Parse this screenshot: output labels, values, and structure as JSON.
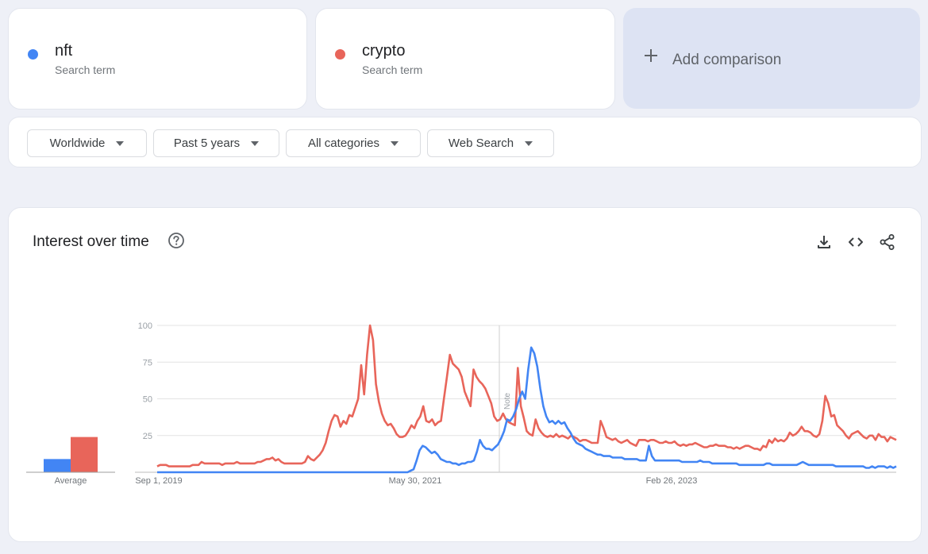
{
  "terms": [
    {
      "name": "nft",
      "sub": "Search term",
      "color": "#4285f4"
    },
    {
      "name": "crypto",
      "sub": "Search term",
      "color": "#e8655a"
    }
  ],
  "add_comparison": {
    "label": "Add comparison",
    "icon": "plus-icon"
  },
  "filters": {
    "region": "Worldwide",
    "time": "Past 5 years",
    "category": "All categories",
    "type": "Web Search"
  },
  "chart": {
    "title": "Interest over time",
    "help_icon": "help-circle-icon",
    "tools": [
      "download-icon",
      "embed-code-icon",
      "share-icon"
    ],
    "note_label": "Note"
  },
  "chart_data": {
    "type": "line",
    "xlabel": "",
    "ylabel": "",
    "ylim": [
      0,
      100
    ],
    "yticks": [
      25,
      50,
      75,
      100
    ],
    "xtick_labels": [
      "Sep 1, 2019",
      "May 30, 2021",
      "Feb 26, 2023"
    ],
    "average": {
      "label": "Average",
      "nft": 9,
      "crypto": 24
    },
    "grid": true,
    "series": [
      {
        "name": "nft",
        "color": "#4285f4",
        "values": [
          0,
          0,
          0,
          0,
          0,
          0,
          0,
          0,
          0,
          0,
          0,
          0,
          0,
          0,
          0,
          0,
          0,
          0,
          0,
          0,
          0,
          0,
          0,
          0,
          0,
          0,
          0,
          0,
          0,
          0,
          0,
          0,
          0,
          0,
          0,
          0,
          0,
          0,
          0,
          0,
          0,
          0,
          0,
          0,
          0,
          0,
          0,
          0,
          0,
          0,
          0,
          0,
          0,
          0,
          0,
          0,
          0,
          0,
          0,
          0,
          0,
          0,
          0,
          0,
          0,
          0,
          0,
          0,
          0,
          0,
          0,
          0,
          0,
          0,
          0,
          0,
          0,
          0,
          0,
          0,
          0,
          0,
          0,
          0,
          1,
          2,
          8,
          15,
          18,
          17,
          15,
          13,
          14,
          12,
          9,
          8,
          7,
          7,
          6,
          6,
          5,
          6,
          6,
          7,
          7,
          8,
          14,
          22,
          18,
          16,
          16,
          15,
          17,
          19,
          23,
          28,
          36,
          35,
          38,
          43,
          50,
          55,
          50,
          70,
          85,
          81,
          72,
          57,
          45,
          38,
          34,
          35,
          33,
          35,
          33,
          34,
          30,
          27,
          23,
          20,
          19,
          18,
          16,
          15,
          14,
          13,
          12,
          12,
          11,
          11,
          11,
          10,
          10,
          10,
          10,
          9,
          9,
          9,
          9,
          9,
          8,
          8,
          8,
          18,
          11,
          8,
          8,
          8,
          8,
          8,
          8,
          8,
          8,
          8,
          7,
          7,
          7,
          7,
          7,
          7,
          8,
          7,
          7,
          7,
          6,
          6,
          6,
          6,
          6,
          6,
          6,
          6,
          6,
          5,
          5,
          5,
          5,
          5,
          5,
          5,
          5,
          5,
          6,
          6,
          5,
          5,
          5,
          5,
          5,
          5,
          5,
          5,
          5,
          6,
          7,
          6,
          5,
          5,
          5,
          5,
          5,
          5,
          5,
          5,
          5,
          4,
          4,
          4,
          4,
          4,
          4,
          4,
          4,
          4,
          4,
          3,
          3,
          4,
          3,
          4,
          4,
          4,
          3,
          4,
          3,
          4
        ]
      },
      {
        "name": "crypto",
        "color": "#e8655a",
        "values": [
          4,
          5,
          5,
          5,
          4,
          4,
          4,
          4,
          4,
          4,
          4,
          4,
          5,
          5,
          5,
          7,
          6,
          6,
          6,
          6,
          6,
          6,
          5,
          6,
          6,
          6,
          6,
          7,
          6,
          6,
          6,
          6,
          6,
          6,
          7,
          7,
          8,
          9,
          9,
          10,
          8,
          9,
          7,
          6,
          6,
          6,
          6,
          6,
          6,
          6,
          7,
          11,
          9,
          8,
          10,
          12,
          15,
          20,
          28,
          35,
          39,
          38,
          31,
          35,
          33,
          39,
          38,
          44,
          50,
          73,
          53,
          80,
          100,
          90,
          60,
          48,
          40,
          35,
          32,
          33,
          30,
          26,
          24,
          24,
          25,
          28,
          32,
          30,
          35,
          38,
          45,
          35,
          34,
          36,
          32,
          34,
          35,
          50,
          65,
          80,
          74,
          72,
          70,
          65,
          55,
          50,
          45,
          70,
          65,
          62,
          60,
          57,
          52,
          47,
          38,
          35,
          36,
          40,
          36,
          34,
          33,
          32,
          71,
          45,
          37,
          28,
          26,
          25,
          36,
          30,
          27,
          25,
          24,
          25,
          24,
          26,
          24,
          25,
          24,
          23,
          25,
          24,
          23,
          21,
          22,
          22,
          21,
          20,
          20,
          20,
          35,
          30,
          24,
          23,
          22,
          23,
          21,
          20,
          21,
          22,
          20,
          19,
          18,
          22,
          22,
          22,
          21,
          22,
          22,
          21,
          20,
          20,
          21,
          20,
          20,
          21,
          19,
          18,
          19,
          18,
          19,
          19,
          20,
          19,
          18,
          17,
          17,
          18,
          18,
          19,
          18,
          18,
          18,
          17,
          17,
          16,
          17,
          16,
          17,
          18,
          18,
          17,
          16,
          16,
          15,
          18,
          17,
          22,
          20,
          23,
          21,
          22,
          21,
          23,
          27,
          25,
          26,
          28,
          31,
          28,
          28,
          27,
          25,
          24,
          26,
          35,
          52,
          47,
          38,
          39,
          32,
          30,
          28,
          25,
          23,
          26,
          27,
          28,
          26,
          24,
          23,
          25,
          25,
          22,
          26,
          24,
          24,
          21,
          24,
          23,
          22
        ]
      }
    ]
  }
}
